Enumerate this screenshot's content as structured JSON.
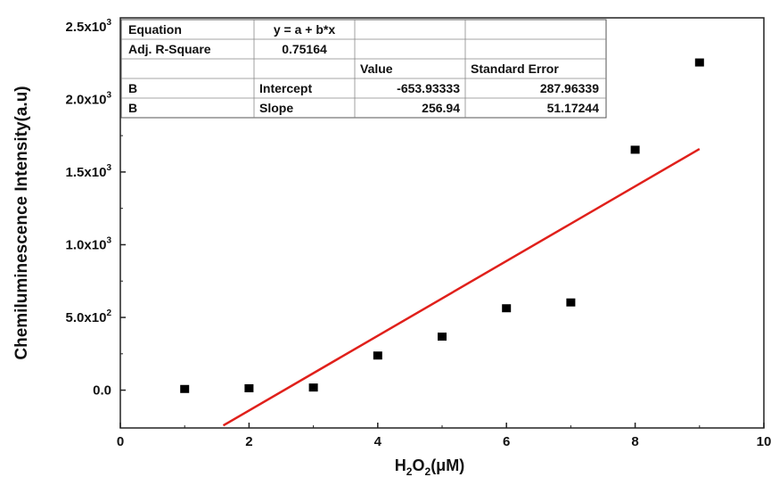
{
  "chart_data": {
    "type": "scatter",
    "xlabel": {
      "main": "H",
      "sub1": "2",
      "mid": "O",
      "sub2": "2",
      "unit": "(μM)"
    },
    "ylabel": "Chemiluminescence Intensity(a.u)",
    "xlim": [
      0,
      10
    ],
    "ylim": [
      -260,
      2560
    ],
    "x_ticks": [
      0,
      2,
      4,
      6,
      8,
      10
    ],
    "x_tick_labels": [
      "0",
      "2",
      "4",
      "6",
      "8",
      "10"
    ],
    "y_ticks": [
      0,
      500,
      1000,
      1500,
      2000,
      2500
    ],
    "y_tick_labels": [
      {
        "mantissa": "0.0",
        "base": "",
        "exp": ""
      },
      {
        "mantissa": "5.0",
        "base": "x10",
        "exp": "2"
      },
      {
        "mantissa": "1.0",
        "base": "x10",
        "exp": "3"
      },
      {
        "mantissa": "1.5",
        "base": "x10",
        "exp": "3"
      },
      {
        "mantissa": "2.0",
        "base": "x10",
        "exp": "3"
      },
      {
        "mantissa": "2.5",
        "base": "x10",
        "exp": "3"
      }
    ],
    "series": [
      {
        "x": [
          1,
          2,
          3,
          4,
          5,
          6,
          7,
          8,
          9
        ],
        "values": [
          5,
          10,
          15,
          235,
          365,
          560,
          600,
          1650,
          2250
        ],
        "marker": "square",
        "color": "#000000"
      }
    ],
    "fit": {
      "intercept": -653.93333,
      "slope": 256.94,
      "x_range": [
        1.6,
        9.0
      ],
      "color": "#e0201b"
    },
    "fit_table": {
      "rows": [
        [
          "Equation",
          "y = a + b*x",
          "",
          ""
        ],
        [
          "Adj. R-Square",
          "0.75164",
          "",
          ""
        ],
        [
          "",
          "",
          "Value",
          "Standard Error"
        ],
        [
          "B",
          "Intercept",
          "-653.93333",
          "287.96339"
        ],
        [
          "B",
          "Slope",
          "256.94",
          "51.17244"
        ]
      ]
    },
    "grid": false,
    "legend": "none"
  }
}
